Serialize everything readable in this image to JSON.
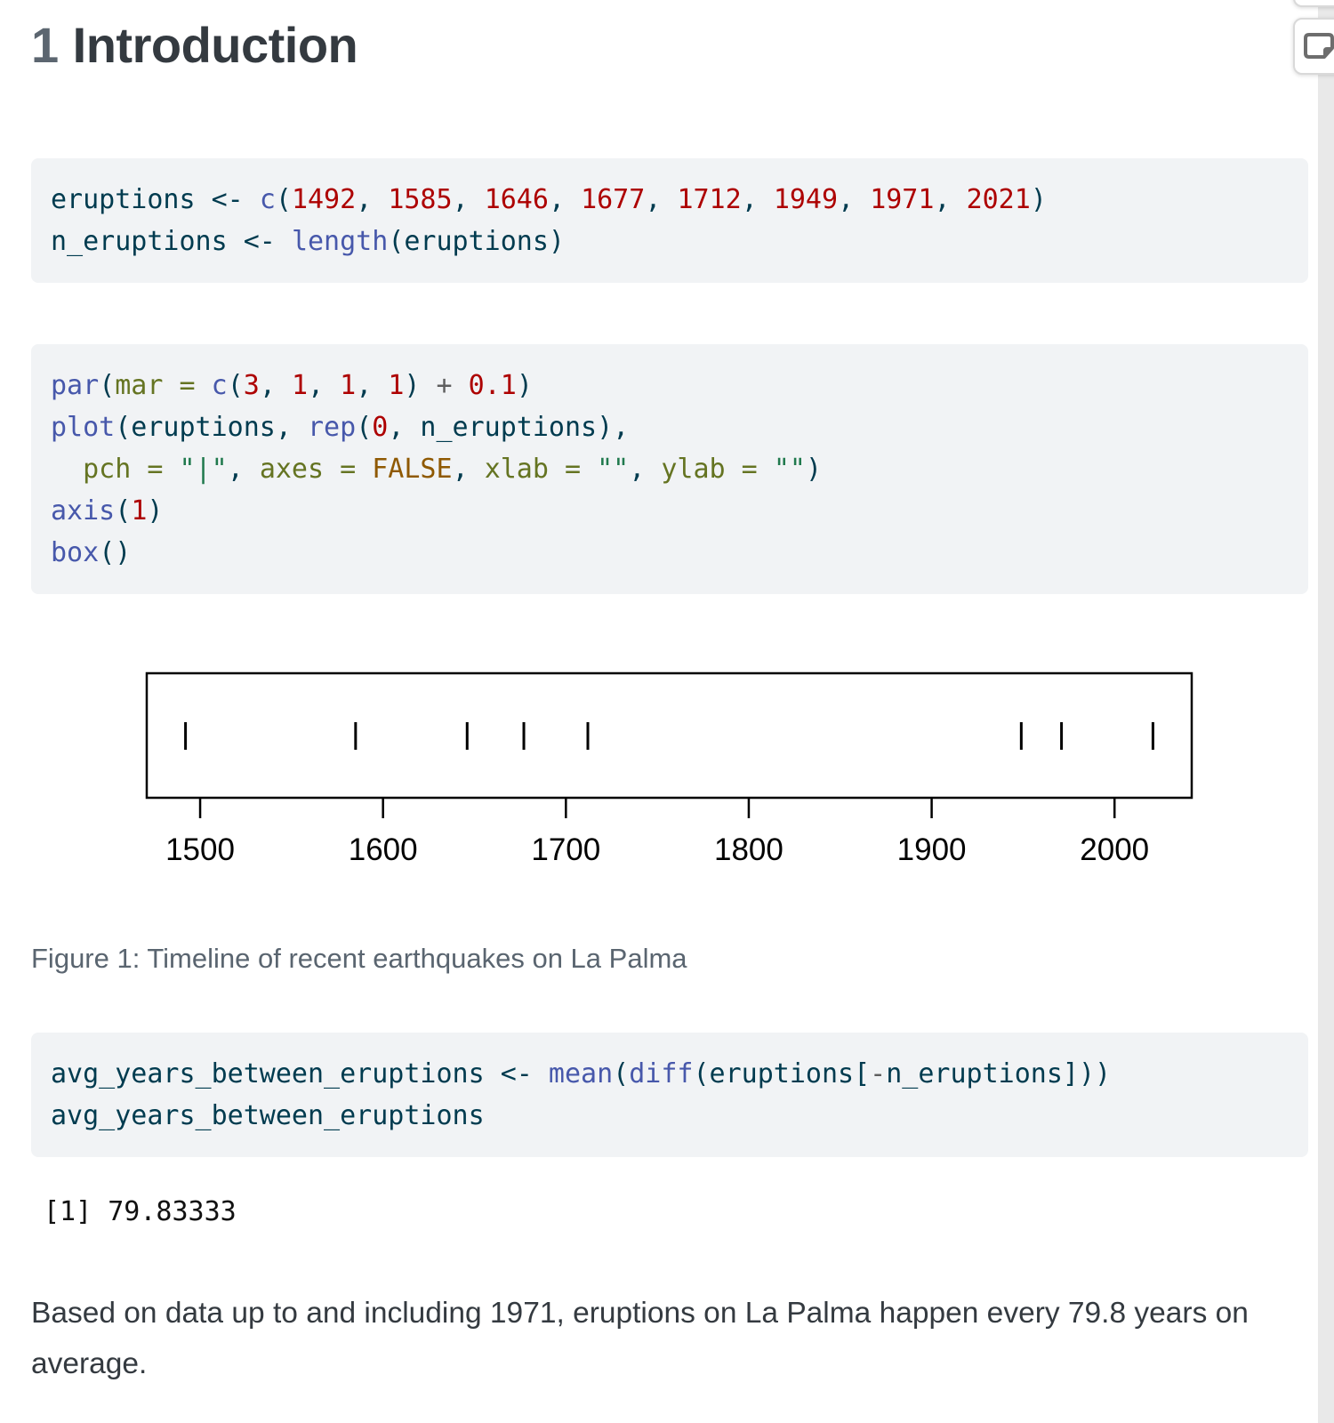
{
  "heading": {
    "number": "1",
    "title": "Introduction"
  },
  "code_blocks": [
    {
      "lines": [
        [
          [
            "df",
            "eruptions <- "
          ],
          [
            "fu",
            "c"
          ],
          [
            "df",
            "("
          ],
          [
            "num",
            "1492"
          ],
          [
            "df",
            ", "
          ],
          [
            "num",
            "1585"
          ],
          [
            "df",
            ", "
          ],
          [
            "num",
            "1646"
          ],
          [
            "df",
            ", "
          ],
          [
            "num",
            "1677"
          ],
          [
            "df",
            ", "
          ],
          [
            "num",
            "1712"
          ],
          [
            "df",
            ", "
          ],
          [
            "num",
            "1949"
          ],
          [
            "df",
            ", "
          ],
          [
            "num",
            "1971"
          ],
          [
            "df",
            ", "
          ],
          [
            "num",
            "2021"
          ],
          [
            "df",
            ")"
          ]
        ],
        [
          [
            "df",
            "n_eruptions <- "
          ],
          [
            "fu",
            "length"
          ],
          [
            "df",
            "(eruptions)"
          ]
        ]
      ]
    },
    {
      "lines": [
        [
          [
            "fu",
            "par"
          ],
          [
            "df",
            "("
          ],
          [
            "arg",
            "mar = "
          ],
          [
            "fu",
            "c"
          ],
          [
            "df",
            "("
          ],
          [
            "num",
            "3"
          ],
          [
            "df",
            ", "
          ],
          [
            "num",
            "1"
          ],
          [
            "df",
            ", "
          ],
          [
            "num",
            "1"
          ],
          [
            "df",
            ", "
          ],
          [
            "num",
            "1"
          ],
          [
            "df",
            ") "
          ],
          [
            "op",
            "+"
          ],
          [
            "df",
            " "
          ],
          [
            "num",
            "0.1"
          ],
          [
            "df",
            ")"
          ]
        ],
        [
          [
            "fu",
            "plot"
          ],
          [
            "df",
            "(eruptions, "
          ],
          [
            "fu",
            "rep"
          ],
          [
            "df",
            "("
          ],
          [
            "num",
            "0"
          ],
          [
            "df",
            ", n_eruptions),"
          ]
        ],
        [
          [
            "df",
            "  "
          ],
          [
            "arg",
            "pch = "
          ],
          [
            "str",
            "\"|\""
          ],
          [
            "df",
            ", "
          ],
          [
            "arg",
            "axes = "
          ],
          [
            "cn",
            "FALSE"
          ],
          [
            "df",
            ", "
          ],
          [
            "arg",
            "xlab = "
          ],
          [
            "str",
            "\"\""
          ],
          [
            "df",
            ", "
          ],
          [
            "arg",
            "ylab = "
          ],
          [
            "str",
            "\"\""
          ],
          [
            "df",
            ")"
          ]
        ],
        [
          [
            "fu",
            "axis"
          ],
          [
            "df",
            "("
          ],
          [
            "num",
            "1"
          ],
          [
            "df",
            ")"
          ]
        ],
        [
          [
            "fu",
            "box"
          ],
          [
            "df",
            "()"
          ]
        ]
      ]
    },
    {
      "lines": [
        [
          [
            "df",
            "avg_years_between_eruptions <- "
          ],
          [
            "fu",
            "mean"
          ],
          [
            "df",
            "("
          ],
          [
            "fu",
            "diff"
          ],
          [
            "df",
            "(eruptions["
          ],
          [
            "op",
            "-"
          ],
          [
            "df",
            "n_eruptions]))"
          ]
        ],
        [
          [
            "df",
            "avg_years_between_eruptions"
          ]
        ]
      ]
    }
  ],
  "figure": {
    "caption": "Figure 1: Timeline of recent earthquakes on La Palma"
  },
  "output": {
    "text": "[1] 79.83333"
  },
  "paragraph": {
    "text": "Based on data up to and including 1971, eruptions on La Palma happen every 79.8 years on average."
  },
  "chart_data": {
    "type": "scatter",
    "title": "",
    "xlabel": "",
    "ylabel": "",
    "x": [
      1492,
      1585,
      1646,
      1677,
      1712,
      1949,
      1971,
      2021
    ],
    "y": [
      0,
      0,
      0,
      0,
      0,
      0,
      0,
      0
    ],
    "marker": "|",
    "x_ticks": [
      1500,
      1600,
      1700,
      1800,
      1900,
      2000
    ],
    "xlim": [
      1470.8,
      2042.2
    ],
    "grid": false,
    "legend": "none",
    "axis_color": "#000000"
  },
  "colors": {
    "code_background": "#f1f3f5",
    "code_default": "#003B4F",
    "code_function": "#4758AB",
    "code_number": "#AD0000",
    "code_argument": "#657422",
    "code_string": "#20794D",
    "code_constant": "#8f5902",
    "code_operator": "#5E5E5E",
    "caption": "#5a6570",
    "body_text": "#343a40",
    "rail": "#e9e9e9"
  }
}
